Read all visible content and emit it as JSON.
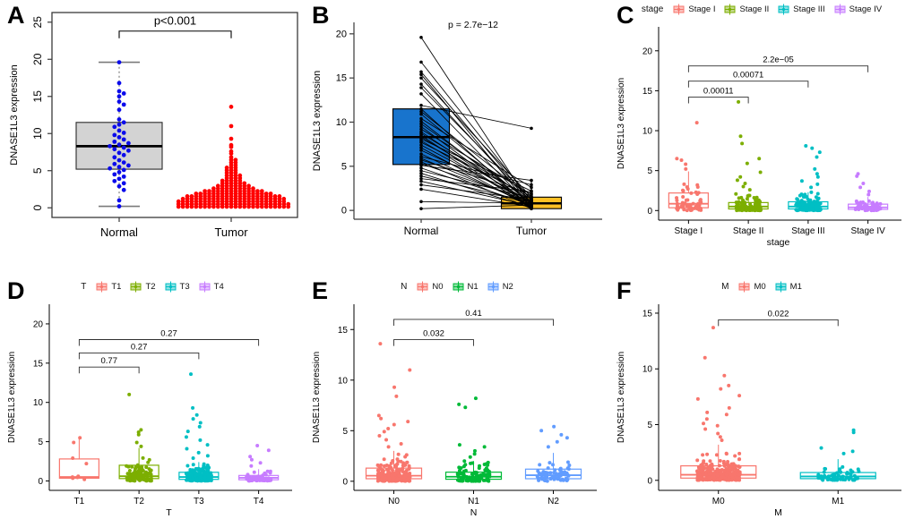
{
  "figure": {
    "background": "#ffffff",
    "panels": [
      {
        "letter": "A"
      },
      {
        "letter": "B"
      },
      {
        "letter": "C"
      },
      {
        "letter": "D"
      },
      {
        "letter": "E"
      },
      {
        "letter": "F"
      }
    ]
  },
  "chart_data": [
    {
      "panel": "A",
      "type": "box_beeswarm",
      "ylabel": "DNASE1L3 expression",
      "yticks": [
        0,
        5,
        10,
        15,
        20,
        25
      ],
      "ylim": [
        -1.3,
        26.3
      ],
      "categories": [
        "Normal",
        "Tumor"
      ],
      "significance": {
        "label": "p<0.001",
        "between": [
          0,
          1
        ],
        "y": 23.8
      },
      "groups": [
        {
          "name": "Normal",
          "point_color": "#0B0BEB",
          "box": {
            "q1": 5.2,
            "median": 8.3,
            "q3": 11.5,
            "whisker_low": 0.2,
            "whisker_high": 19.6,
            "fill": "#D3D3D3",
            "border": "#2b2b2b"
          },
          "values": [
            19.6,
            16.8,
            15.7,
            15.4,
            15.0,
            14.3,
            13.9,
            13.2,
            11.9,
            11.5,
            11.2,
            10.9,
            10.4,
            10.1,
            9.8,
            9.5,
            9.2,
            8.9,
            8.7,
            8.5,
            8.3,
            8.1,
            7.9,
            7.7,
            7.4,
            7.1,
            6.8,
            6.4,
            6.1,
            5.9,
            5.7,
            5.5,
            5.3,
            5.1,
            4.8,
            4.5,
            4.2,
            3.9,
            3.6,
            3.3,
            2.9,
            2.4,
            1.0,
            0.2
          ]
        },
        {
          "name": "Tumor",
          "point_color": "#FF0000",
          "swarm_bins": [
            {
              "v": 0.15,
              "n": 26
            },
            {
              "v": 0.5,
              "n": 26
            },
            {
              "v": 0.85,
              "n": 25
            },
            {
              "v": 1.2,
              "n": 24
            },
            {
              "v": 1.55,
              "n": 22
            },
            {
              "v": 1.9,
              "n": 18
            },
            {
              "v": 2.25,
              "n": 14
            },
            {
              "v": 2.6,
              "n": 10
            },
            {
              "v": 2.95,
              "n": 8
            },
            {
              "v": 3.3,
              "n": 6
            },
            {
              "v": 3.65,
              "n": 5
            },
            {
              "v": 4.0,
              "n": 4
            },
            {
              "v": 4.35,
              "n": 4
            },
            {
              "v": 4.7,
              "n": 3
            },
            {
              "v": 5.05,
              "n": 3
            },
            {
              "v": 5.4,
              "n": 3
            },
            {
              "v": 5.75,
              "n": 2
            },
            {
              "v": 6.1,
              "n": 2
            },
            {
              "v": 6.45,
              "n": 2
            },
            {
              "v": 6.8,
              "n": 1
            },
            {
              "v": 7.3,
              "n": 1
            },
            {
              "v": 7.6,
              "n": 1
            },
            {
              "v": 8.2,
              "n": 1
            },
            {
              "v": 8.45,
              "n": 1
            },
            {
              "v": 9.3,
              "n": 1
            },
            {
              "v": 11.0,
              "n": 1
            },
            {
              "v": 13.6,
              "n": 1
            }
          ]
        }
      ]
    },
    {
      "panel": "B",
      "type": "paired_box",
      "pvalue": "p = 2.7e−12",
      "ylabel": "DNASE1L3 expression",
      "yticks": [
        0,
        5,
        10,
        15,
        20
      ],
      "ylim": [
        -1.0,
        21.3
      ],
      "categories": [
        "Normal",
        "Tumor"
      ],
      "point_color": "#000000",
      "line_color": "#000000",
      "boxes": [
        {
          "name": "Normal",
          "fill": "#1874CD",
          "q1": 5.2,
          "median": 8.3,
          "q3": 11.5
        },
        {
          "name": "Tumor",
          "fill": "#FFC125",
          "q1": 0.2,
          "median": 0.8,
          "q3": 1.5,
          "whisker_high": 3.3
        }
      ],
      "pairs": [
        [
          19.6,
          0.6
        ],
        [
          16.8,
          1.1
        ],
        [
          15.7,
          0.9
        ],
        [
          15.4,
          0.3
        ],
        [
          15.0,
          1.5
        ],
        [
          14.3,
          0.8
        ],
        [
          13.9,
          1.2
        ],
        [
          13.2,
          0.4
        ],
        [
          11.9,
          9.3
        ],
        [
          11.5,
          0.2
        ],
        [
          11.2,
          1.4
        ],
        [
          10.9,
          0.7
        ],
        [
          10.4,
          2.6
        ],
        [
          10.1,
          0.5
        ],
        [
          9.8,
          1.0
        ],
        [
          9.5,
          0.3
        ],
        [
          9.2,
          1.8
        ],
        [
          8.9,
          0.6
        ],
        [
          8.7,
          1.3
        ],
        [
          8.5,
          0.2
        ],
        [
          8.3,
          0.9
        ],
        [
          8.1,
          2.2
        ],
        [
          7.9,
          0.4
        ],
        [
          7.7,
          1.6
        ],
        [
          7.4,
          0.8
        ],
        [
          7.1,
          0.3
        ],
        [
          6.8,
          1.1
        ],
        [
          6.4,
          0.5
        ],
        [
          6.1,
          2.9
        ],
        [
          5.9,
          0.7
        ],
        [
          5.7,
          1.9
        ],
        [
          5.5,
          0.2
        ],
        [
          5.3,
          1.0
        ],
        [
          5.1,
          3.4
        ],
        [
          4.8,
          0.6
        ],
        [
          4.5,
          1.4
        ],
        [
          4.2,
          0.3
        ],
        [
          3.9,
          0.9
        ],
        [
          3.6,
          2.1
        ],
        [
          3.3,
          0.5
        ],
        [
          2.9,
          1.2
        ],
        [
          2.4,
          0.4
        ],
        [
          1.0,
          0.8
        ],
        [
          0.2,
          0.6
        ]
      ]
    },
    {
      "panel": "C",
      "type": "grouped_box_jitter",
      "legend": {
        "title": "stage",
        "items": [
          "Stage I",
          "Stage II",
          "Stage III",
          "Stage IV"
        ]
      },
      "xlabel": "stage",
      "ylabel": "DNASE1L3 expression",
      "yticks": [
        0,
        5,
        10,
        15,
        20
      ],
      "ylim": [
        -1.2,
        23.0
      ],
      "colors": [
        "#F8766D",
        "#7CAE00",
        "#00BFC4",
        "#C77CFF"
      ],
      "categories": [
        "Stage I",
        "Stage II",
        "Stage III",
        "Stage IV"
      ],
      "groups": [
        {
          "name": "Stage I",
          "n": 52,
          "scale": 1.0,
          "cap": 4.9,
          "box": {
            "q1": 0.35,
            "median": 0.85,
            "q3": 2.2,
            "whisker_low": 0.05,
            "whisker_high": 4.9
          },
          "outliers": [
            11.0,
            6.5,
            6.3,
            5.8,
            5.2
          ]
        },
        {
          "name": "Stage II",
          "n": 120,
          "scale": 0.6,
          "cap": 2.1,
          "box": {
            "q1": 0.2,
            "median": 0.5,
            "q3": 1.0,
            "whisker_low": 0.03,
            "whisker_high": 2.1
          },
          "outliers": [
            13.6,
            9.3,
            8.4,
            6.5,
            5.9,
            4.8,
            4.2,
            3.8,
            3.4,
            3.0,
            2.6
          ]
        },
        {
          "name": "Stage III",
          "n": 150,
          "scale": 0.6,
          "cap": 2.3,
          "box": {
            "q1": 0.2,
            "median": 0.5,
            "q3": 1.1,
            "whisker_low": 0.03,
            "whisker_high": 2.3
          },
          "outliers": [
            8.1,
            7.8,
            7.3,
            6.7,
            5.2,
            4.6,
            4.2,
            3.7,
            3.3,
            2.9
          ]
        },
        {
          "name": "Stage IV",
          "n": 55,
          "scale": 0.45,
          "cap": 1.7,
          "box": {
            "q1": 0.15,
            "median": 0.4,
            "q3": 0.8,
            "whisker_low": 0.03,
            "whisker_high": 1.7
          },
          "outliers": [
            4.6,
            4.3,
            3.4,
            2.9,
            2.4,
            2.0
          ]
        }
      ],
      "brackets": [
        {
          "from": 0,
          "to": 1,
          "y": 14.2,
          "label": "0.00011"
        },
        {
          "from": 0,
          "to": 2,
          "y": 16.2,
          "label": "0.00071"
        },
        {
          "from": 0,
          "to": 3,
          "y": 18.1,
          "label": "2.2e−05"
        }
      ]
    },
    {
      "panel": "D",
      "type": "grouped_box_jitter",
      "legend": {
        "title": "T",
        "items": [
          "T1",
          "T2",
          "T3",
          "T4"
        ]
      },
      "xlabel": "T",
      "ylabel": "DNASE1L3 expression",
      "yticks": [
        0,
        5,
        10,
        15,
        20
      ],
      "ylim": [
        -1.2,
        22.5
      ],
      "colors": [
        "#F8766D",
        "#7CAE00",
        "#00BFC4",
        "#C77CFF"
      ],
      "categories": [
        "T1",
        "T2",
        "T3",
        "T4"
      ],
      "groups": [
        {
          "name": "T1",
          "n": 0,
          "scale": 0.5,
          "cap": 5.5,
          "box": {
            "q1": 0.35,
            "median": 0.5,
            "q3": 2.8,
            "whisker_low": 0.3,
            "whisker_high": 5.6
          },
          "outliers": [],
          "points": [
            5.5,
            4.9,
            2.9,
            2.2,
            0.6,
            0.5,
            0.45,
            0.35,
            0.2
          ]
        },
        {
          "name": "T2",
          "n": 105,
          "scale": 0.8,
          "cap": 4.0,
          "box": {
            "q1": 0.3,
            "median": 0.6,
            "q3": 2.0,
            "whisker_low": 0.05,
            "whisker_high": 4.2
          },
          "outliers": [
            11.0,
            6.5,
            6.2,
            5.9,
            4.9,
            4.4
          ]
        },
        {
          "name": "T3",
          "n": 190,
          "scale": 0.6,
          "cap": 2.4,
          "box": {
            "q1": 0.2,
            "median": 0.5,
            "q3": 1.1,
            "whisker_low": 0.03,
            "whisker_high": 2.4
          },
          "outliers": [
            13.6,
            9.3,
            8.4,
            7.9,
            7.4,
            6.9,
            6.3,
            5.6,
            5.2,
            4.6,
            4.1,
            3.6,
            3.2,
            2.9
          ]
        },
        {
          "name": "T4",
          "n": 55,
          "scale": 0.4,
          "cap": 1.5,
          "box": {
            "q1": 0.15,
            "median": 0.4,
            "q3": 0.7,
            "whisker_low": 0.03,
            "whisker_high": 1.5
          },
          "outliers": [
            4.5,
            3.9,
            3.1,
            2.7,
            2.3,
            1.9
          ]
        }
      ],
      "brackets": [
        {
          "from": 0,
          "to": 1,
          "y": 14.5,
          "label": "0.77"
        },
        {
          "from": 0,
          "to": 2,
          "y": 16.3,
          "label": "0.27"
        },
        {
          "from": 0,
          "to": 3,
          "y": 18.0,
          "label": "0.27"
        }
      ]
    },
    {
      "panel": "E",
      "type": "grouped_box_jitter",
      "legend": {
        "title": "N",
        "items": [
          "N0",
          "N1",
          "N2"
        ]
      },
      "xlabel": "N",
      "ylabel": "DNASE1L3 expression",
      "yticks": [
        0,
        5,
        10,
        15
      ],
      "ylim": [
        -0.9,
        17.5
      ],
      "colors": [
        "#F8766D",
        "#00BA38",
        "#619CFF"
      ],
      "categories": [
        "N0",
        "N1",
        "N2"
      ],
      "groups": [
        {
          "name": "N0",
          "n": 220,
          "scale": 0.7,
          "cap": 3.0,
          "box": {
            "q1": 0.25,
            "median": 0.55,
            "q3": 1.3,
            "whisker_low": 0.03,
            "whisker_high": 3.0
          },
          "outliers": [
            13.6,
            11.0,
            9.3,
            8.4,
            6.5,
            6.2,
            5.9,
            5.6,
            5.2,
            4.9,
            4.5,
            4.1,
            3.7,
            3.4
          ]
        },
        {
          "name": "N1",
          "n": 105,
          "scale": 0.55,
          "cap": 2.0,
          "box": {
            "q1": 0.2,
            "median": 0.45,
            "q3": 0.9,
            "whisker_low": 0.03,
            "whisker_high": 2.0
          },
          "outliers": [
            8.2,
            7.6,
            7.3,
            3.6,
            3.4,
            3.0,
            2.7,
            2.4
          ]
        },
        {
          "name": "N2",
          "n": 65,
          "scale": 0.7,
          "cap": 2.8,
          "box": {
            "q1": 0.25,
            "median": 0.6,
            "q3": 1.2,
            "whisker_low": 0.03,
            "whisker_high": 2.8
          },
          "outliers": [
            5.4,
            5.0,
            4.6,
            4.3,
            3.9,
            3.4
          ]
        }
      ],
      "brackets": [
        {
          "from": 0,
          "to": 1,
          "y": 14.0,
          "label": "0.032"
        },
        {
          "from": 0,
          "to": 2,
          "y": 16.0,
          "label": "0.41"
        }
      ]
    },
    {
      "panel": "F",
      "type": "grouped_box_jitter",
      "legend": {
        "title": "M",
        "items": [
          "M0",
          "M1"
        ]
      },
      "xlabel": "M",
      "ylabel": "DNASE1L3 expression",
      "yticks": [
        0,
        5,
        10,
        15
      ],
      "ylim": [
        -0.9,
        15.8
      ],
      "colors": [
        "#F8766D",
        "#00BFC4"
      ],
      "categories": [
        "M0",
        "M1"
      ],
      "groups": [
        {
          "name": "M0",
          "n": 300,
          "scale": 0.65,
          "cap": 3.2,
          "box": {
            "q1": 0.2,
            "median": 0.5,
            "q3": 1.3,
            "whisker_low": 0.03,
            "whisker_high": 3.2
          },
          "outliers": [
            13.7,
            11.0,
            9.4,
            8.5,
            8.2,
            7.6,
            7.3,
            6.5,
            6.1,
            5.9,
            5.5,
            5.1,
            4.9,
            4.6,
            4.2,
            3.9,
            3.6
          ]
        },
        {
          "name": "M1",
          "n": 65,
          "scale": 0.4,
          "cap": 1.9,
          "box": {
            "q1": 0.15,
            "median": 0.35,
            "q3": 0.7,
            "whisker_low": 0.03,
            "whisker_high": 1.9
          },
          "outliers": [
            4.5,
            4.3,
            2.9,
            2.6,
            2.4
          ]
        }
      ],
      "brackets": [
        {
          "from": 0,
          "to": 1,
          "y": 14.4,
          "label": "0.022"
        }
      ]
    }
  ]
}
